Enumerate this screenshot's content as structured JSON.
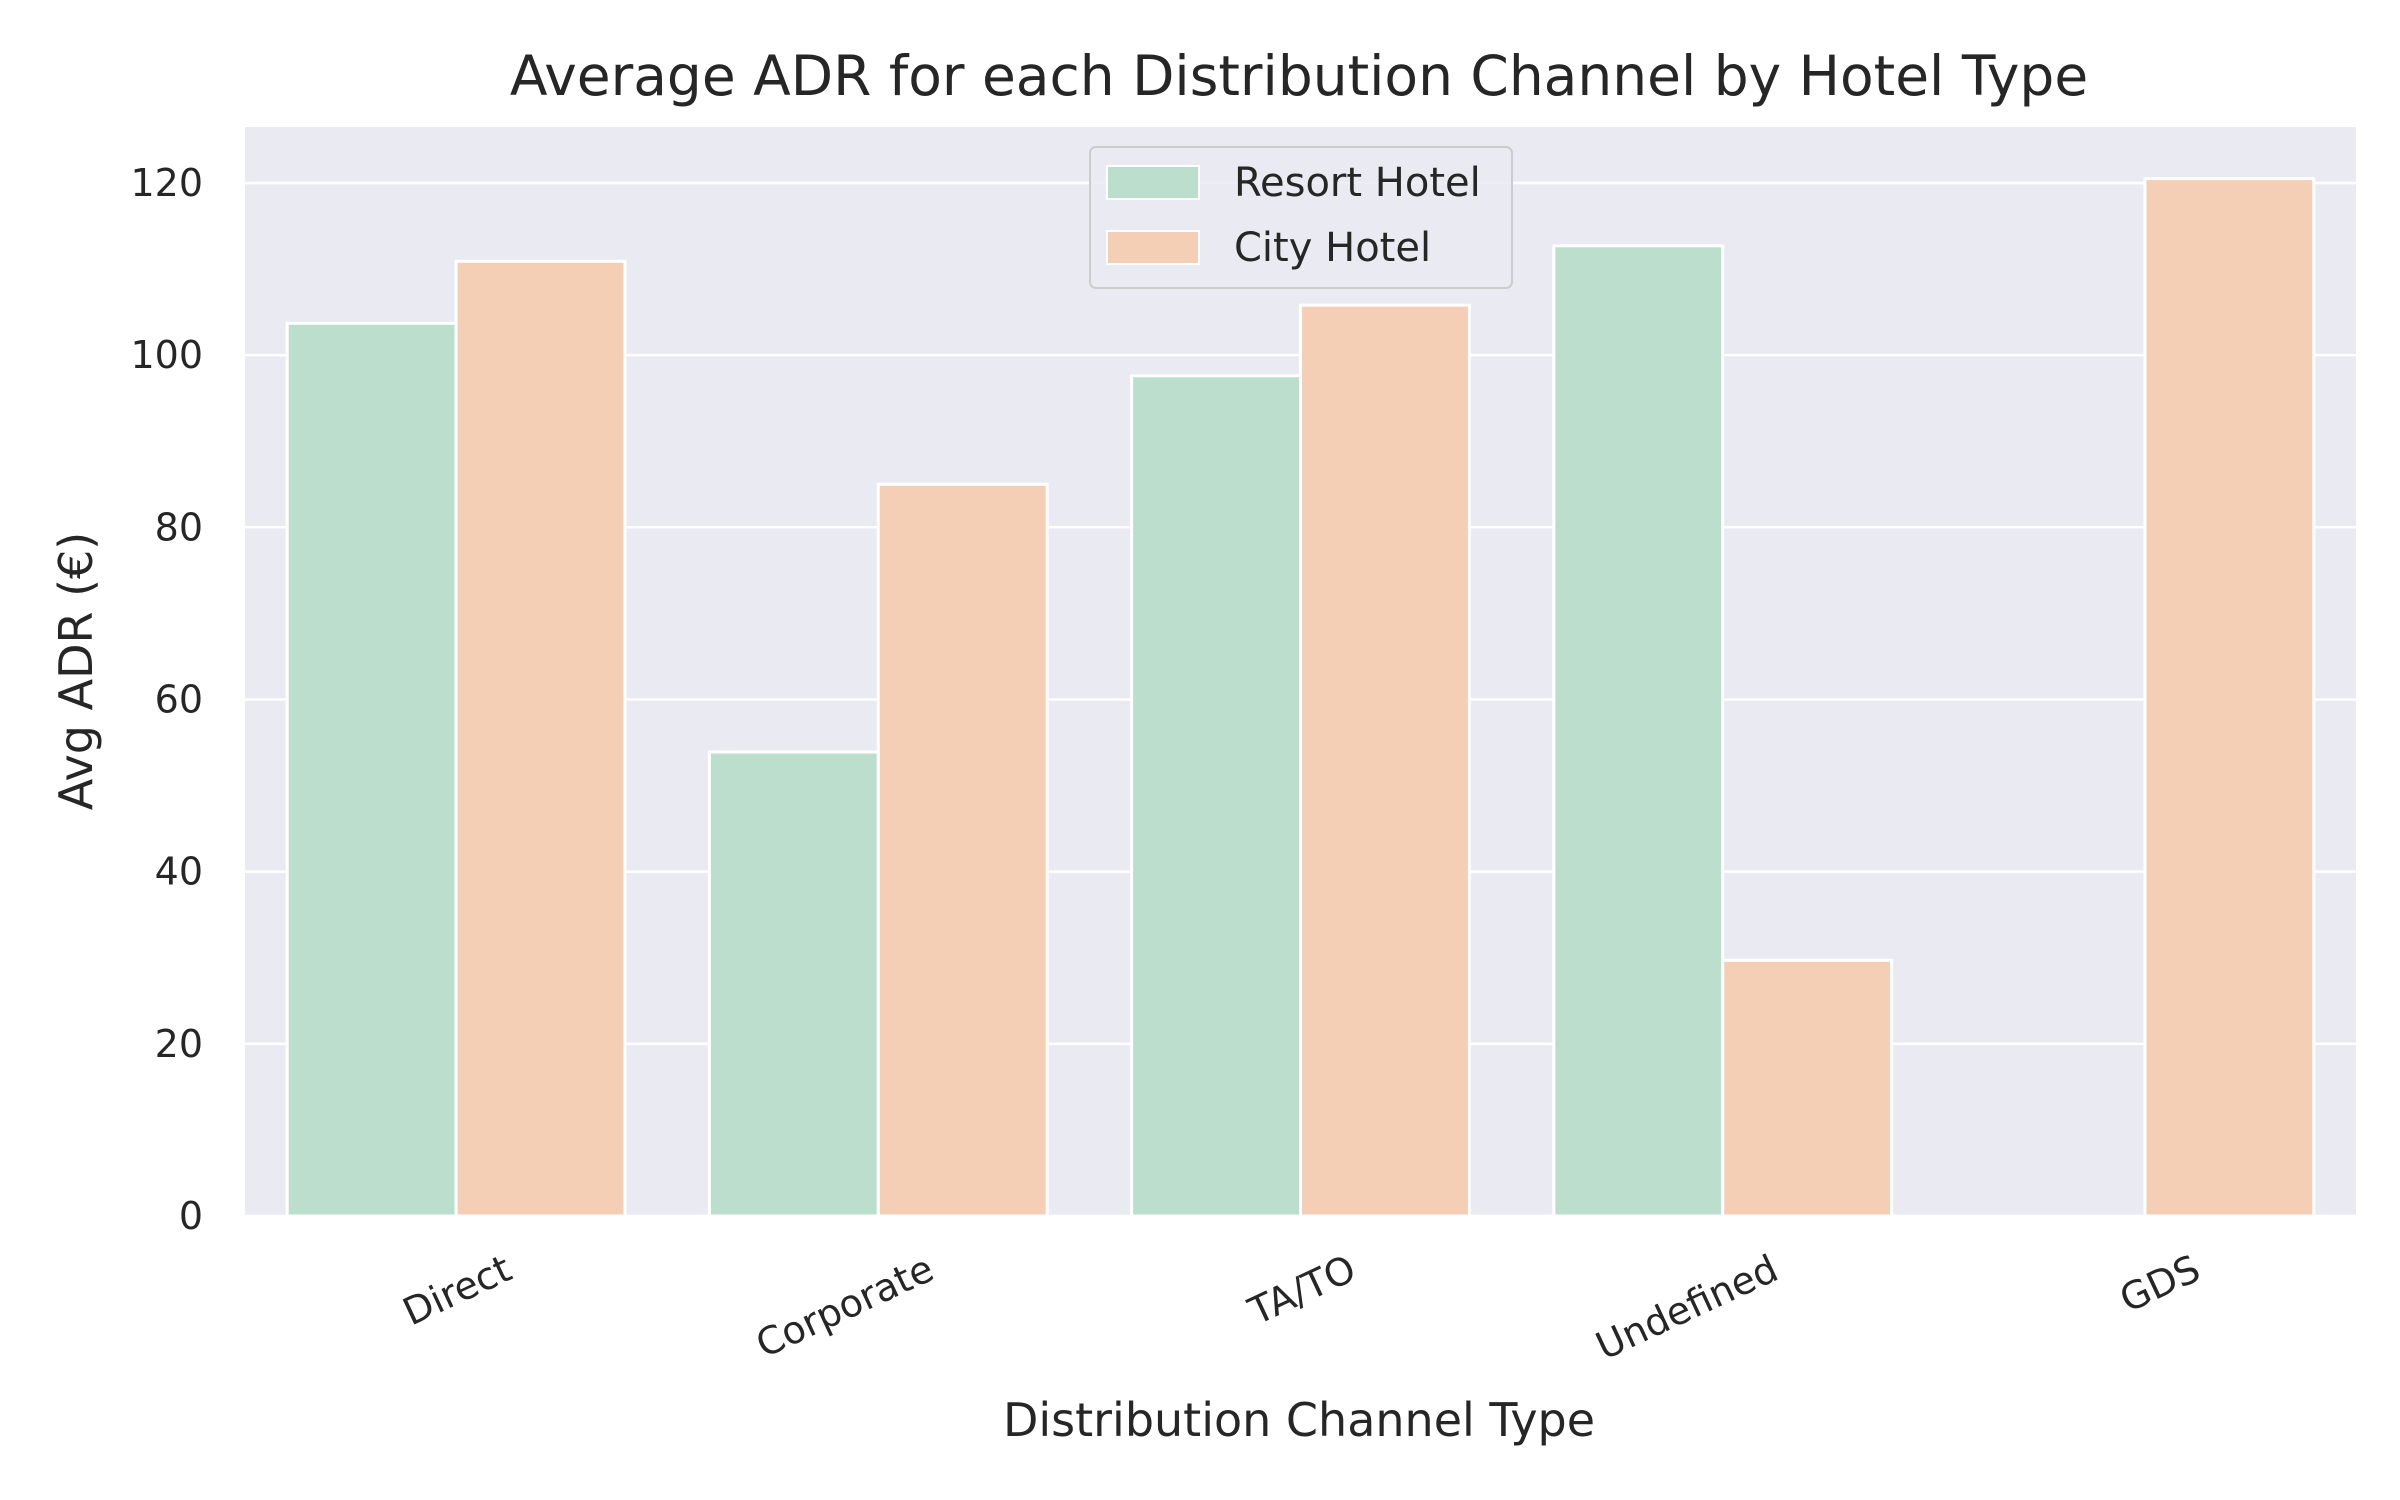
{
  "chart_data": {
    "type": "bar",
    "title": "Average ADR for each Distribution Channel by Hotel Type",
    "xlabel": "Distribution Channel Type",
    "ylabel": "Avg ADR  (€)",
    "categories": [
      "Direct",
      "Corporate",
      "TA/TO",
      "Undefined",
      "GDS"
    ],
    "series": [
      {
        "name": "Resort Hotel",
        "color": "#bbdecd",
        "values": [
          103.7,
          53.9,
          97.6,
          112.7,
          null
        ]
      },
      {
        "name": "City Hotel",
        "color": "#f4cfb6",
        "values": [
          110.9,
          85.0,
          105.8,
          29.7,
          120.5
        ]
      }
    ],
    "ylim": [
      0,
      126.5
    ],
    "yticks": [
      0,
      20,
      40,
      60,
      80,
      100,
      120
    ],
    "grid": true,
    "legend_position": "top-center",
    "background_color": "#eaeaf2",
    "grid_color": "#ffffff"
  }
}
